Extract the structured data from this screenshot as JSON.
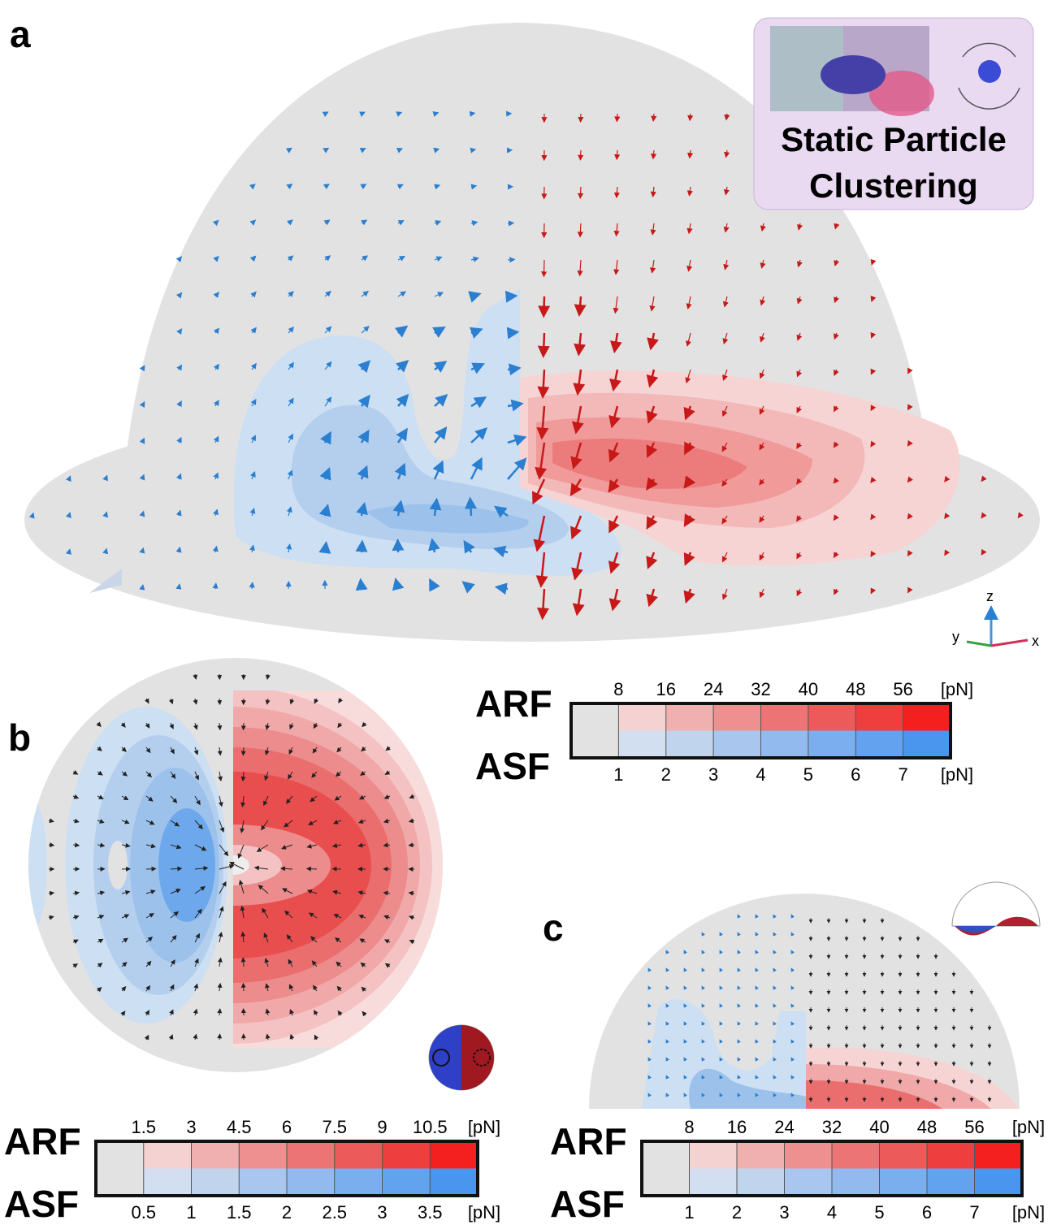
{
  "panels": [
    {
      "label": "a"
    },
    {
      "label": "b"
    },
    {
      "label": "c"
    }
  ],
  "inset": {
    "title_lines": [
      "Static Particle",
      "Clustering"
    ]
  },
  "axes_triad": {
    "z": "z",
    "y": "y",
    "x": "x"
  },
  "colorbars": [
    {
      "top_label": "ARF",
      "bottom_label": "ASF",
      "top_ticks": [
        "8",
        "16",
        "24",
        "32",
        "40",
        "48",
        "56"
      ],
      "top_unit": "[pN]",
      "bottom_ticks": [
        "1",
        "2",
        "3",
        "4",
        "5",
        "6",
        "7"
      ],
      "bottom_unit": "[pN]"
    },
    {
      "top_label": "ARF",
      "bottom_label": "ASF",
      "top_ticks": [
        "1.5",
        "3",
        "4.5",
        "6",
        "7.5",
        "9",
        "10.5"
      ],
      "top_unit": "[pN]",
      "bottom_ticks": [
        "0.5",
        "1",
        "1.5",
        "2",
        "2.5",
        "3",
        "3.5"
      ],
      "bottom_unit": "[pN]"
    },
    {
      "top_label": "ARF",
      "bottom_label": "ASF",
      "top_ticks": [
        "8",
        "16",
        "24",
        "32",
        "40",
        "48",
        "56"
      ],
      "top_unit": "[pN]",
      "bottom_ticks": [
        "1",
        "2",
        "3",
        "4",
        "5",
        "6",
        "7"
      ],
      "bottom_unit": "[pN]"
    }
  ]
}
